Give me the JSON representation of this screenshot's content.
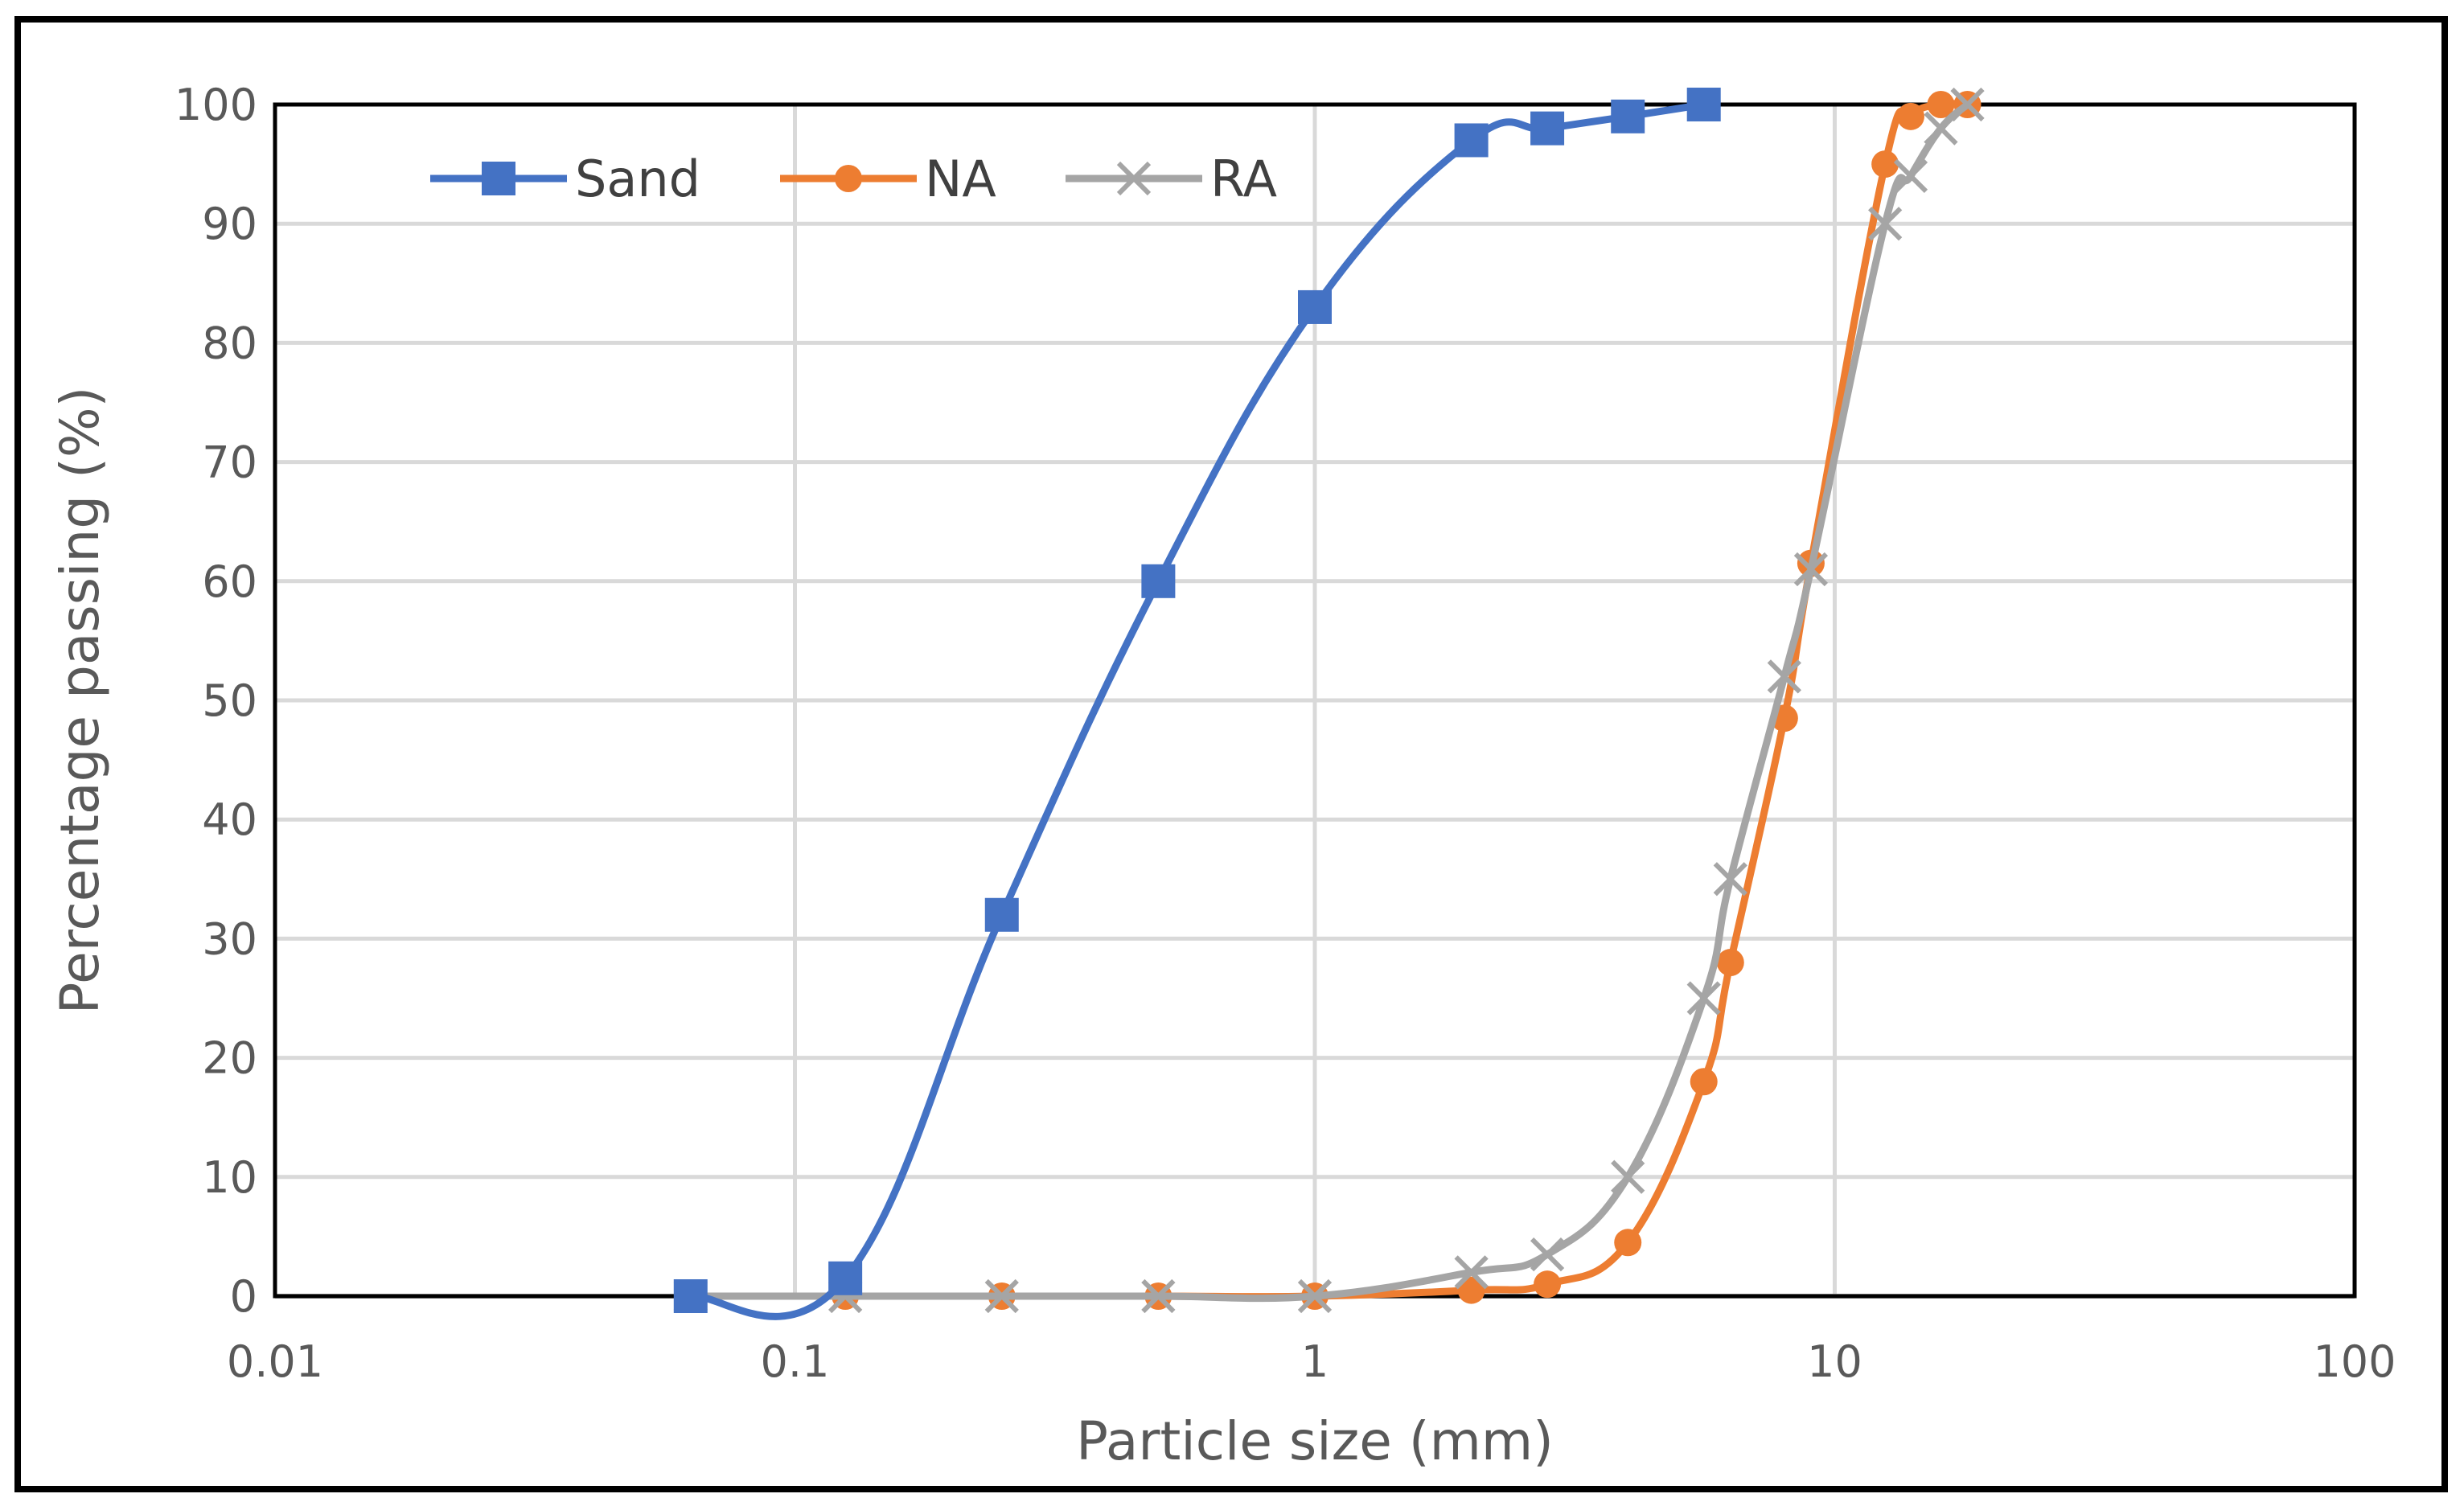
{
  "chart_data": {
    "type": "scatter",
    "title": "",
    "xlabel": "Particle size (mm)",
    "ylabel": "Percentage passing (%)",
    "xscale": "log",
    "xlim": [
      0.01,
      100
    ],
    "ylim": [
      0,
      100
    ],
    "grid": true,
    "legend_position": "top-left",
    "x_ticks": [
      {
        "value": 0.01,
        "label": "0.01"
      },
      {
        "value": 0.1,
        "label": "0.1"
      },
      {
        "value": 1,
        "label": "1"
      },
      {
        "value": 10,
        "label": "10"
      },
      {
        "value": 100,
        "label": "100"
      }
    ],
    "y_ticks": [
      {
        "value": 0,
        "label": "0"
      },
      {
        "value": 10,
        "label": "10"
      },
      {
        "value": 20,
        "label": "20"
      },
      {
        "value": 30,
        "label": "30"
      },
      {
        "value": 40,
        "label": "40"
      },
      {
        "value": 50,
        "label": "50"
      },
      {
        "value": 60,
        "label": "60"
      },
      {
        "value": 70,
        "label": "70"
      },
      {
        "value": 80,
        "label": "80"
      },
      {
        "value": 90,
        "label": "90"
      },
      {
        "value": 100,
        "label": "100"
      }
    ],
    "series": [
      {
        "name": "Sand",
        "color": "#4472c4",
        "marker": "square",
        "x": [
          0.063,
          0.125,
          0.25,
          0.5,
          1,
          2,
          2.8,
          4,
          5.6
        ],
        "y": [
          0,
          1.5,
          32,
          60,
          83,
          97,
          98,
          99,
          100
        ]
      },
      {
        "name": "NA",
        "color": "#ed7d31",
        "marker": "circle",
        "x": [
          0.063,
          0.125,
          0.25,
          0.5,
          1,
          2,
          2.8,
          4,
          5.6,
          6.3,
          8,
          9,
          12.5,
          14,
          16,
          18
        ],
        "y": [
          0,
          0,
          0,
          0,
          0,
          0.5,
          1,
          4.5,
          18,
          28,
          48.5,
          61.5,
          95,
          99,
          100,
          100
        ]
      },
      {
        "name": "RA",
        "color": "#a5a5a5",
        "marker": "x",
        "x": [
          0.063,
          0.125,
          0.25,
          0.5,
          1,
          2,
          2.8,
          4,
          5.6,
          6.3,
          8,
          9,
          12.5,
          14,
          16,
          18
        ],
        "y": [
          0,
          0,
          0,
          0,
          0,
          2,
          3.5,
          10,
          25,
          35,
          52,
          61,
          90,
          94,
          98,
          100
        ]
      }
    ]
  }
}
